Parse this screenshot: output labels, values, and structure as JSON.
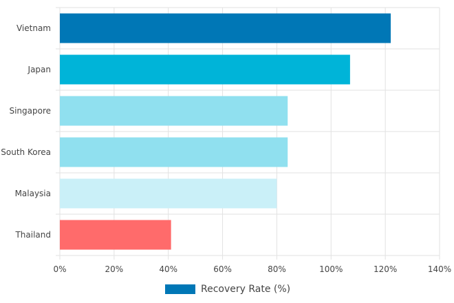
{
  "chart_data": {
    "type": "bar",
    "orientation": "horizontal",
    "categories": [
      "Vietnam",
      "Japan",
      "Singapore",
      "South Korea",
      "Malaysia",
      "Thailand"
    ],
    "series": [
      {
        "name": "Recovery Rate (%)",
        "values": [
          122,
          107,
          84,
          84,
          80,
          41
        ],
        "colors": [
          "#0077b6",
          "#00b4d8",
          "#90e0ef",
          "#90e0ef",
          "#caf0f8",
          "#ff6b6b"
        ]
      }
    ],
    "xlim": [
      0,
      140
    ],
    "xticks": [
      "0%",
      "20%",
      "40%",
      "60%",
      "80%",
      "100%",
      "120%",
      "140%"
    ],
    "grid": true,
    "legend_position": "bottom",
    "legend_color": "#0077b6"
  }
}
